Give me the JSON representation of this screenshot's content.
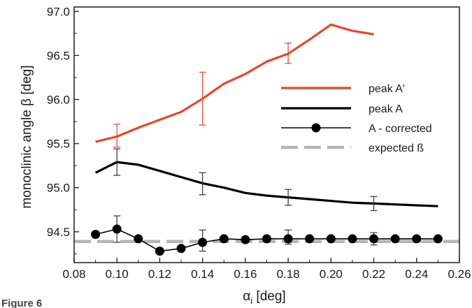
{
  "figure_label": "Figure 6",
  "chart_data": {
    "type": "line",
    "title": "",
    "xlabel_main": "α",
    "xlabel_sub": "i",
    "xlabel_unit": " [deg]",
    "ylabel": "monoclinic angle β  [deg]",
    "xlim": [
      0.08,
      0.26
    ],
    "ylim": [
      94.15,
      97.05
    ],
    "x_ticks": [
      0.08,
      0.1,
      0.12,
      0.14,
      0.16,
      0.18,
      0.2,
      0.22,
      0.24,
      0.26
    ],
    "x_tick_labels": [
      "0.08",
      "0.10",
      "0.12",
      "0.14",
      "0.16",
      "0.18",
      "0.20",
      "0.22",
      "0.24",
      "0.26"
    ],
    "y_ticks": [
      94.5,
      95.0,
      95.5,
      96.0,
      96.5,
      97.0
    ],
    "y_tick_labels": [
      "94.5",
      "95.0",
      "95.5",
      "96.0",
      "96.5",
      "97.0"
    ],
    "grid": false,
    "legend_position": "right",
    "series": [
      {
        "name": "peak A'",
        "color": "#e8452c",
        "style": "line",
        "x": [
          0.09,
          0.1,
          0.11,
          0.12,
          0.13,
          0.14,
          0.15,
          0.16,
          0.17,
          0.18,
          0.19,
          0.2,
          0.21,
          0.22
        ],
        "y": [
          95.52,
          95.58,
          95.68,
          95.77,
          95.86,
          96.01,
          96.18,
          96.29,
          96.43,
          96.52,
          96.68,
          96.85,
          96.78,
          96.74
        ],
        "error_bars": [
          {
            "x": 0.1,
            "low": 95.46,
            "high": 95.72
          },
          {
            "x": 0.14,
            "low": 95.71,
            "high": 96.31
          },
          {
            "x": 0.18,
            "low": 96.41,
            "high": 96.64
          }
        ]
      },
      {
        "name": "peak A",
        "color": "#000000",
        "style": "line",
        "x": [
          0.09,
          0.1,
          0.11,
          0.12,
          0.13,
          0.14,
          0.15,
          0.16,
          0.17,
          0.18,
          0.19,
          0.2,
          0.21,
          0.22,
          0.23,
          0.24,
          0.25
        ],
        "y": [
          95.17,
          95.29,
          95.26,
          95.19,
          95.12,
          95.05,
          95.0,
          94.94,
          94.91,
          94.89,
          94.87,
          94.85,
          94.83,
          94.82,
          94.81,
          94.8,
          94.79
        ],
        "error_bars": [
          {
            "x": 0.1,
            "low": 95.14,
            "high": 95.44
          },
          {
            "x": 0.14,
            "low": 94.92,
            "high": 95.17
          },
          {
            "x": 0.18,
            "low": 94.8,
            "high": 94.98
          },
          {
            "x": 0.22,
            "low": 94.74,
            "high": 94.9
          }
        ]
      },
      {
        "name": "A - corrected",
        "color": "#000000",
        "style": "line-marker",
        "x": [
          0.09,
          0.1,
          0.11,
          0.12,
          0.13,
          0.14,
          0.15,
          0.16,
          0.17,
          0.18,
          0.19,
          0.2,
          0.21,
          0.22,
          0.23,
          0.24,
          0.25
        ],
        "y": [
          94.47,
          94.53,
          94.42,
          94.28,
          94.31,
          94.38,
          94.42,
          94.41,
          94.42,
          94.42,
          94.42,
          94.42,
          94.42,
          94.42,
          94.42,
          94.42,
          94.42
        ],
        "error_bars": [
          {
            "x": 0.1,
            "low": 94.38,
            "high": 94.68
          },
          {
            "x": 0.14,
            "low": 94.28,
            "high": 94.52
          },
          {
            "x": 0.18,
            "low": 94.36,
            "high": 94.52
          },
          {
            "x": 0.22,
            "low": 94.35,
            "high": 94.49
          }
        ]
      },
      {
        "name": "expected ß",
        "color": "#b5b5b5",
        "style": "dashed",
        "x": [
          0.08,
          0.26
        ],
        "y": [
          94.39,
          94.39
        ]
      }
    ]
  }
}
